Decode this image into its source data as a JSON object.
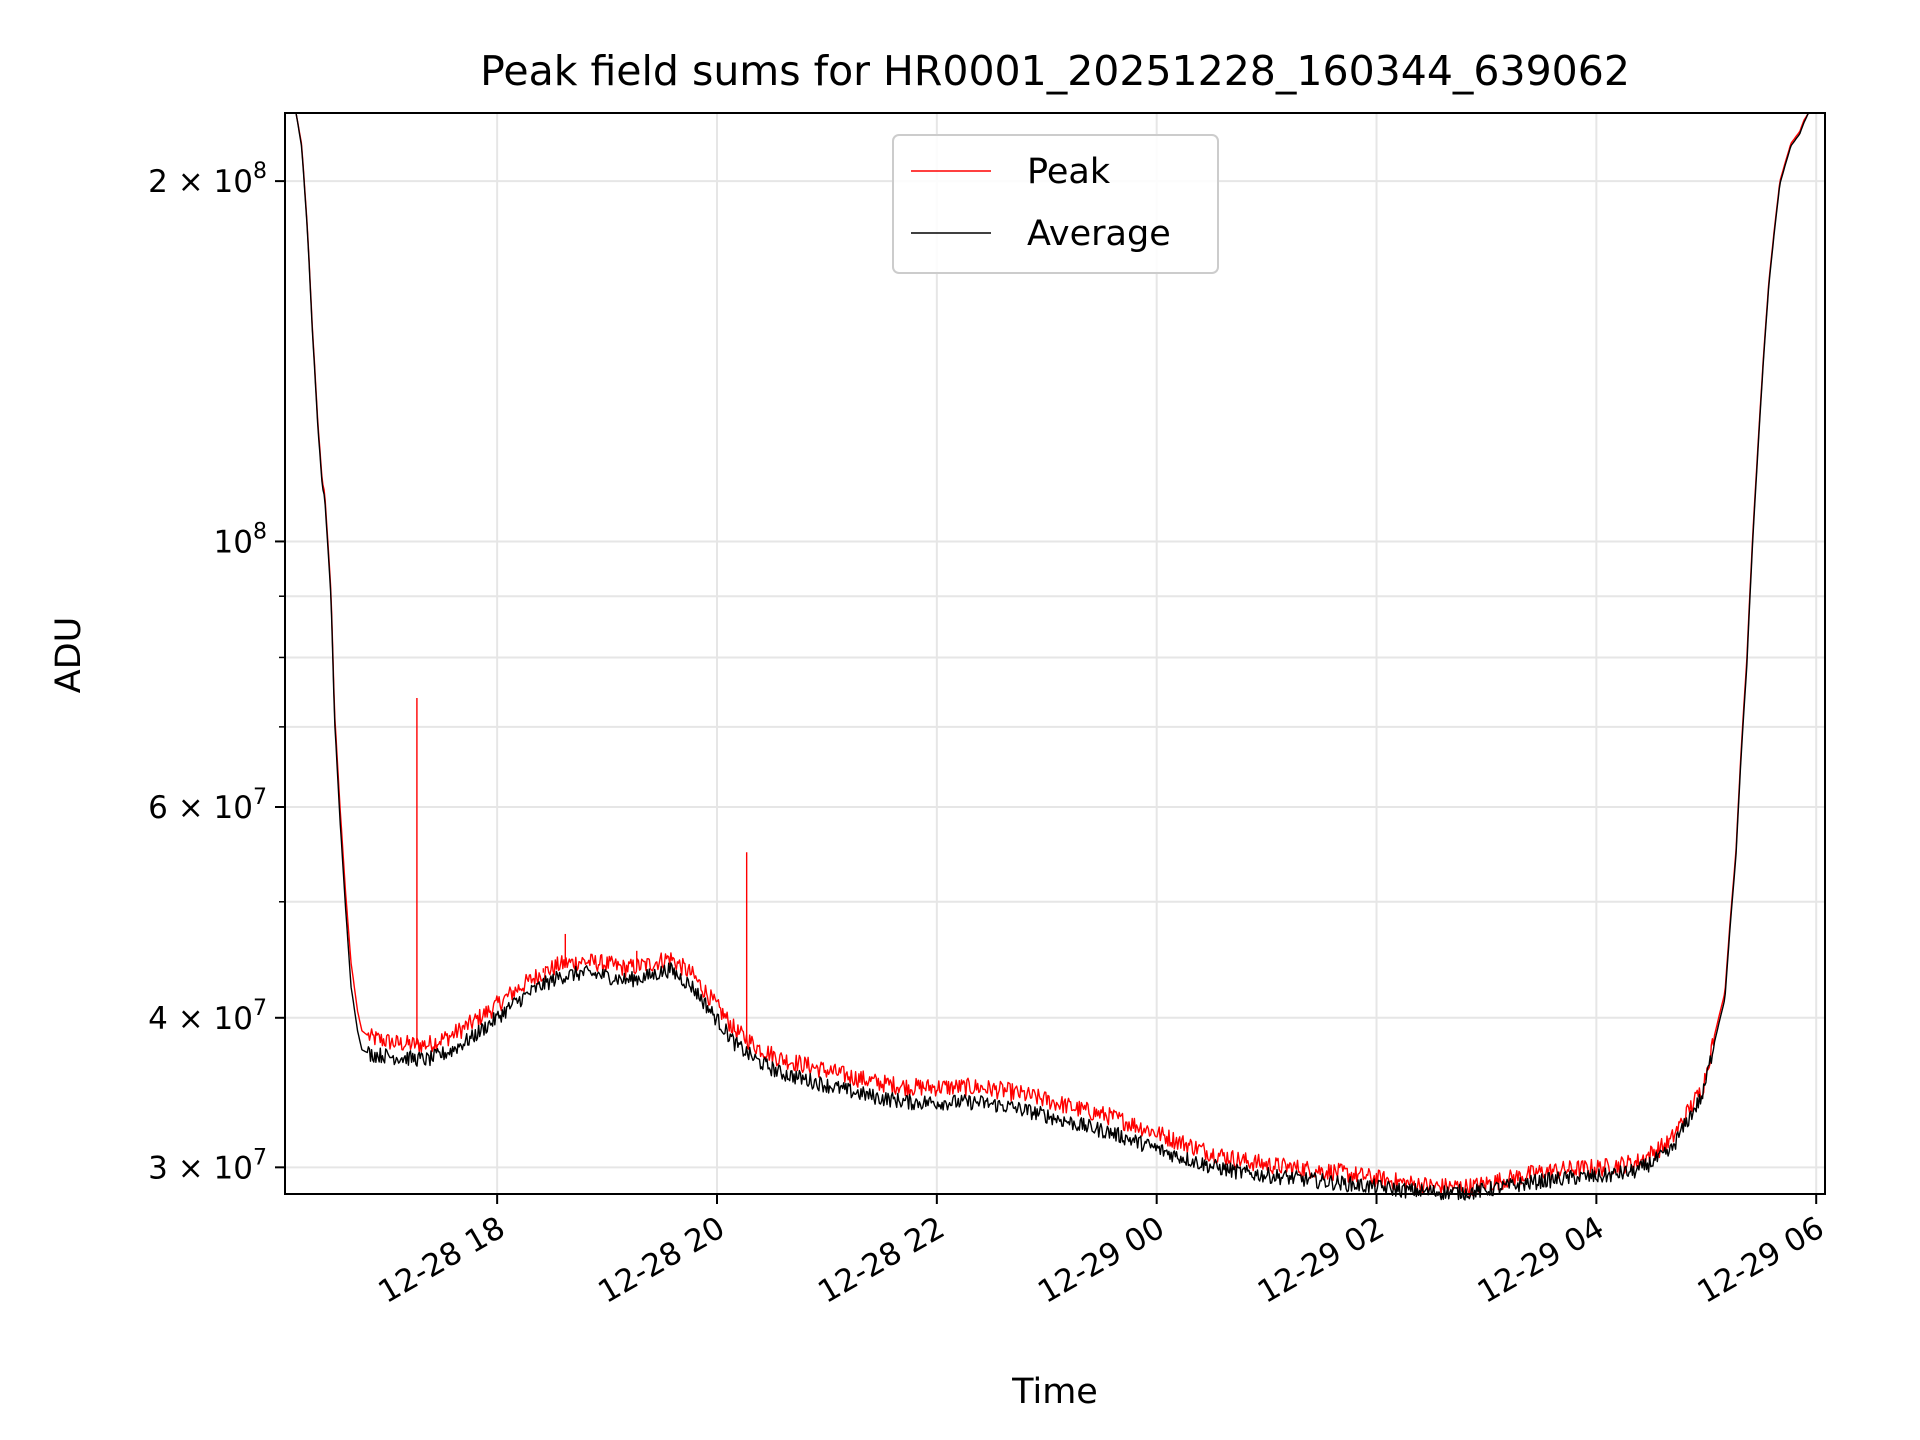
{
  "chart_data": {
    "type": "line",
    "title": "Peak field sums for HR0001_20251228_160344_639062",
    "xlabel": "Time",
    "ylabel": "ADU",
    "yscale": "log",
    "ylim": [
      28500000,
      228000000
    ],
    "xlim": [
      "12-28 16:04",
      "12-29 06:05"
    ],
    "grid": true,
    "legend_position": "upper center",
    "x_ticks": [
      {
        "label": "12-28 18",
        "value": 1.93
      },
      {
        "label": "12-28 20",
        "value": 3.93
      },
      {
        "label": "12-28 22",
        "value": 5.93
      },
      {
        "label": "12-29 00",
        "value": 7.93
      },
      {
        "label": "12-29 02",
        "value": 9.93
      },
      {
        "label": "12-29 04",
        "value": 11.93
      },
      {
        "label": "12-29 06",
        "value": 13.93
      }
    ],
    "y_ticks": [
      {
        "value": 30000000,
        "mantissa": "3",
        "exponent": "7"
      },
      {
        "value": 40000000,
        "mantissa": "4",
        "exponent": "7"
      },
      {
        "value": 60000000,
        "mantissa": "6",
        "exponent": "7"
      },
      {
        "value": 100000000,
        "mantissa": "",
        "exponent": "8"
      },
      {
        "value": 200000000,
        "mantissa": "2",
        "exponent": "8"
      }
    ],
    "y_minor_ticks": [
      50000000,
      70000000,
      80000000,
      90000000
    ],
    "x_unit": "hours since 2025-12-28 16:04",
    "series": [
      {
        "name": "Peak",
        "color": "#ff0000",
        "x": [
          0.1,
          0.15,
          0.2,
          0.25,
          0.3,
          0.34,
          0.36,
          0.42,
          0.45,
          0.5,
          0.55,
          0.6,
          0.66,
          0.7,
          0.78,
          0.9,
          1.0,
          1.15,
          1.3,
          1.5,
          1.7,
          1.9,
          2.1,
          2.3,
          2.5,
          2.7,
          2.9,
          3.1,
          3.3,
          3.5,
          3.7,
          3.9,
          4.1,
          4.3,
          4.5,
          4.8,
          5.1,
          5.4,
          5.7,
          6.0,
          6.3,
          6.6,
          6.9,
          7.2,
          7.5,
          7.8,
          8.1,
          8.4,
          8.7,
          9.0,
          9.3,
          9.6,
          9.9,
          10.2,
          10.5,
          10.8,
          11.1,
          11.4,
          11.7,
          12.0,
          12.3,
          12.6,
          12.9,
          13.1,
          13.2,
          13.3,
          13.4,
          13.5,
          13.6,
          13.7,
          13.78,
          13.82,
          13.86
        ],
        "values": [
          228000000,
          215000000,
          185000000,
          150000000,
          125000000,
          112000000,
          110000000,
          90000000,
          72000000,
          60000000,
          51000000,
          44500000,
          40500000,
          39000000,
          38500000,
          38300000,
          38100000,
          38000000,
          38000000,
          38600000,
          39600000,
          40800000,
          42200000,
          43400000,
          44300000,
          44600000,
          44400000,
          44000000,
          44300000,
          44900000,
          43500000,
          41200000,
          39000000,
          37800000,
          37000000,
          36400000,
          35800000,
          35300000,
          35000000,
          35000000,
          35000000,
          34700000,
          34200000,
          33600000,
          33100000,
          32400000,
          31600000,
          30900000,
          30400000,
          30100000,
          29900000,
          29700000,
          29400000,
          29100000,
          28900000,
          28900000,
          29300000,
          29700000,
          29900000,
          30000000,
          30300000,
          31500000,
          35000000,
          42000000,
          55000000,
          80000000,
          120000000,
          165000000,
          200000000,
          215000000,
          220000000,
          225000000,
          228000000
        ],
        "spikes": [
          {
            "x": 1.2,
            "value": 74000000
          },
          {
            "x": 2.35,
            "value": 44000000
          },
          {
            "x": 2.55,
            "value": 47000000
          },
          {
            "x": 3.2,
            "value": 45500000
          },
          {
            "x": 4.2,
            "value": 55000000
          }
        ]
      },
      {
        "name": "Average",
        "color": "#000000",
        "x": [
          0.1,
          0.15,
          0.2,
          0.25,
          0.3,
          0.34,
          0.36,
          0.42,
          0.45,
          0.5,
          0.55,
          0.6,
          0.66,
          0.7,
          0.78,
          0.9,
          1.0,
          1.15,
          1.3,
          1.5,
          1.7,
          1.9,
          2.1,
          2.3,
          2.5,
          2.7,
          2.9,
          3.1,
          3.3,
          3.5,
          3.7,
          3.9,
          4.1,
          4.3,
          4.5,
          4.8,
          5.1,
          5.4,
          5.7,
          6.0,
          6.3,
          6.6,
          6.9,
          7.2,
          7.5,
          7.8,
          8.1,
          8.4,
          8.7,
          9.0,
          9.3,
          9.6,
          9.9,
          10.2,
          10.5,
          10.8,
          11.1,
          11.4,
          11.7,
          12.0,
          12.3,
          12.6,
          12.9,
          13.1,
          13.2,
          13.3,
          13.4,
          13.5,
          13.6,
          13.7,
          13.78,
          13.82,
          13.86
        ],
        "values": [
          228000000,
          214000000,
          184000000,
          149000000,
          124000000,
          111000000,
          109000000,
          89000000,
          71000000,
          58500000,
          49500000,
          42500000,
          39000000,
          37600000,
          37300000,
          37200000,
          37100000,
          37000000,
          36900000,
          37500000,
          38500000,
          39800000,
          41200000,
          42400000,
          43300000,
          43600000,
          43400000,
          43000000,
          43300000,
          43900000,
          42500000,
          40200000,
          38000000,
          36800000,
          36000000,
          35400000,
          34800000,
          34300000,
          34000000,
          34000000,
          34000000,
          33700000,
          33200000,
          32600000,
          32100000,
          31400000,
          30700000,
          30100000,
          29700000,
          29500000,
          29300000,
          29100000,
          28900000,
          28700000,
          28600000,
          28600000,
          28900000,
          29200000,
          29400000,
          29500000,
          29800000,
          30900000,
          34500000,
          41500000,
          54500000,
          79000000,
          119000000,
          164000000,
          199000000,
          214000000,
          219000000,
          224000000,
          228000000
        ]
      }
    ]
  }
}
